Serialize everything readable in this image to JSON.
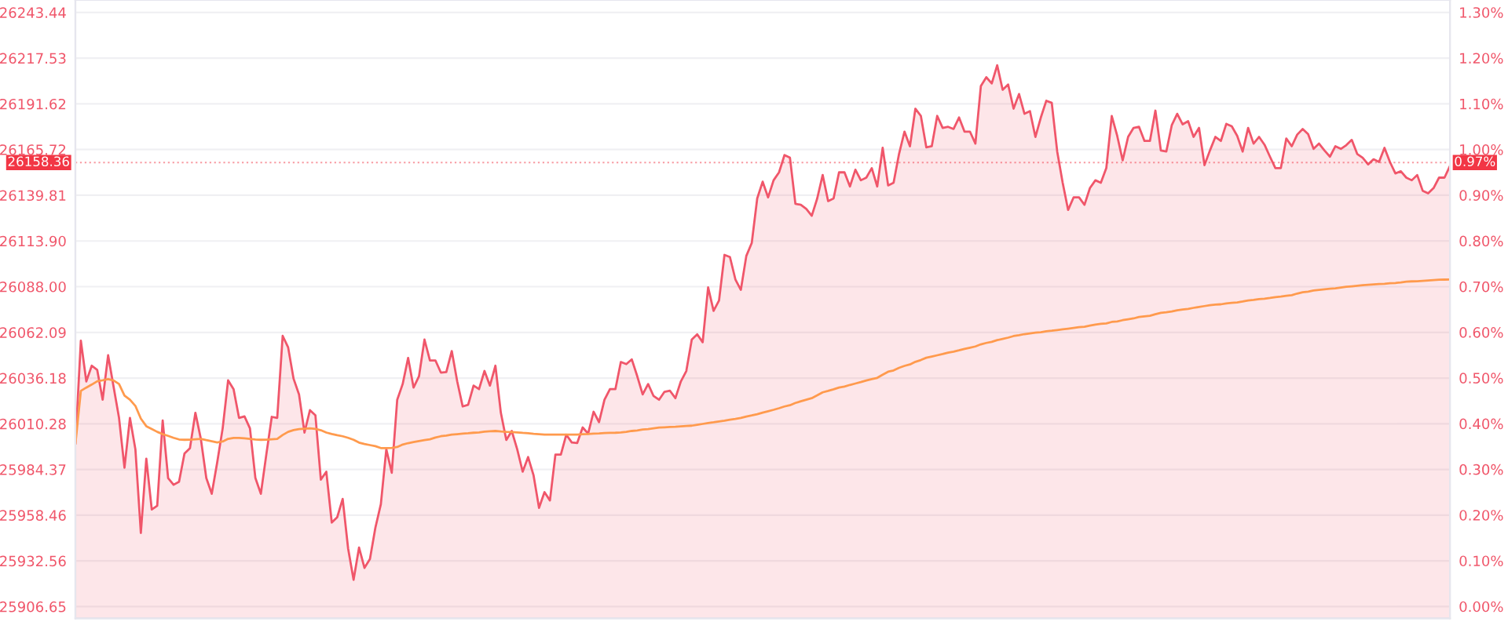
{
  "chart_data": {
    "type": "area",
    "categories": [
      null,
      null,
      null,
      null,
      null,
      null,
      null,
      null,
      null,
      null,
      null,
      null,
      null,
      null,
      null,
      null,
      null,
      null,
      null,
      null,
      null,
      null,
      null,
      null,
      null,
      null,
      null,
      null,
      null,
      null,
      null,
      null,
      null,
      null,
      null,
      null,
      null,
      null,
      null,
      null,
      null,
      null,
      null,
      null,
      null,
      null,
      null,
      null,
      null,
      null,
      null,
      null,
      null,
      null,
      null,
      null,
      null,
      null,
      null,
      null,
      null,
      null,
      null,
      null,
      null,
      null,
      null,
      null,
      null,
      null,
      null,
      null,
      null,
      null,
      null,
      null,
      null,
      null,
      null,
      null,
      null,
      null,
      null,
      null,
      null,
      null,
      null,
      null,
      null,
      null,
      null,
      null,
      null,
      null,
      null,
      null,
      null,
      null,
      null,
      null,
      null,
      null,
      null,
      null,
      null,
      null,
      null,
      null,
      null,
      null,
      null,
      null,
      null,
      null,
      null,
      null,
      null,
      null,
      null,
      null,
      null,
      null,
      null,
      null,
      null,
      null,
      null,
      null,
      null,
      null,
      null,
      null,
      null,
      null,
      null,
      null,
      null,
      null,
      null,
      null,
      null,
      null,
      null,
      null,
      null,
      null,
      null,
      null,
      null,
      null,
      null,
      null,
      null,
      null,
      null,
      null,
      null,
      null,
      null,
      null,
      null,
      null,
      null,
      null,
      null,
      null,
      null,
      null,
      null,
      null,
      null,
      null,
      null,
      null,
      null,
      null,
      null,
      null,
      null,
      null,
      null,
      null,
      null,
      null,
      null,
      null,
      null,
      null,
      null,
      null,
      null,
      null,
      null,
      null,
      null,
      null,
      null,
      null,
      null,
      null,
      null,
      null,
      null,
      null,
      null,
      null,
      null,
      null,
      null,
      null,
      null,
      null,
      null,
      null,
      null,
      null,
      null,
      null,
      null,
      null,
      null,
      null,
      null,
      null,
      null,
      null,
      null,
      null,
      null,
      null,
      null,
      null,
      null,
      null,
      null,
      null,
      null,
      null,
      null,
      null,
      null,
      null,
      null,
      null,
      null,
      null,
      null,
      null,
      null,
      null,
      null,
      null,
      null
    ],
    "ylim": [
      25900,
      26250.5
    ],
    "yticks": [
      {
        "value": 25906.65,
        "label": "25906.65"
      },
      {
        "value": 25932.56,
        "label": "25932.56"
      },
      {
        "value": 25958.46,
        "label": "25958.46"
      },
      {
        "value": 25984.37,
        "label": "25984.37"
      },
      {
        "value": 26010.28,
        "label": "26010.28"
      },
      {
        "value": 26036.18,
        "label": "26036.18"
      },
      {
        "value": 26062.09,
        "label": "26062.09"
      },
      {
        "value": 26088.0,
        "label": "26088.00"
      },
      {
        "value": 26113.9,
        "label": "26113.90"
      },
      {
        "value": 26139.81,
        "label": "26139.81"
      },
      {
        "value": 26165.72,
        "label": "26165.72"
      },
      {
        "value": 26191.62,
        "label": "26191.62"
      },
      {
        "value": 26217.53,
        "label": "26217.53"
      },
      {
        "value": 26243.44,
        "label": "26243.44"
      }
    ],
    "y2lim": [
      -0.026,
      1.327
    ],
    "y2ticks": [
      {
        "value": 0,
        "label": "0.00%"
      },
      {
        "value": 0.1,
        "label": "0.10%"
      },
      {
        "value": 0.2,
        "label": "0.20%"
      },
      {
        "value": 0.3,
        "label": "0.30%"
      },
      {
        "value": 0.4,
        "label": "0.40%"
      },
      {
        "value": 0.5,
        "label": "0.50%"
      },
      {
        "value": 0.6,
        "label": "0.60%"
      },
      {
        "value": 0.7,
        "label": "0.70%"
      },
      {
        "value": 0.8,
        "label": "0.80%"
      },
      {
        "value": 0.9,
        "label": "0.90%"
      },
      {
        "value": 1.0,
        "label": "1.00%"
      },
      {
        "value": 1.1,
        "label": "1.10%"
      },
      {
        "value": 1.2,
        "label": "1.20%"
      },
      {
        "value": 1.3,
        "label": "1.30%"
      }
    ],
    "grid": "y",
    "ref_lines": [
      {
        "axis": "y",
        "value": 26158.36,
        "label": "26158.36",
        "color": "#f23645",
        "line_style": "dotted"
      }
    ],
    "annotations": [
      {
        "text": "0.97%",
        "y": 26158.36
      }
    ],
    "series": [
      {
        "color": "#f0566a",
        "values": [
          25998.8,
          26057.4,
          26034.3,
          26043.2,
          26040.8,
          26023.9,
          26049.1,
          26031.3,
          26013.6,
          25985.4,
          26013.6,
          25995.8,
          25948.4,
          25990.5,
          25961.7,
          25963.8,
          26012.1,
          25979.5,
          25975.7,
          25977.4,
          25993.4,
          25996.4,
          26016.5,
          26001.7,
          25979.5,
          25970.6,
          25988.4,
          26007.7,
          26034.9,
          26029.9,
          26013.6,
          26014.5,
          26007.7,
          25979.5,
          25970.6,
          25992.8,
          26014.2,
          26013.6,
          26060.1,
          26053.6,
          26035.8,
          26026.9,
          26005.3,
          26018.0,
          26015.1,
          25978.6,
          25983.1,
          25954.3,
          25957.3,
          25967.7,
          25939.5,
          25921.8,
          25940.1,
          25928.6,
          25933.6,
          25951.4,
          25964.7,
          25995.8,
          25982.5,
          26023.9,
          26032.8,
          26047.6,
          26030.8,
          26037.3,
          26058.0,
          26046.2,
          26046.2,
          26039.3,
          26039.6,
          26051.5,
          26034.3,
          26020.1,
          26021.0,
          26031.9,
          26029.9,
          26040.2,
          26031.9,
          26043.2,
          26016.5,
          26001.1,
          26006.2,
          25995.8,
          25983.1,
          25991.4,
          25981.0,
          25962.6,
          25971.5,
          25966.8,
          25992.8,
          25992.8,
          26004.1,
          25999.7,
          25999.4,
          26008.2,
          26004.7,
          26017.1,
          26011.2,
          26023.9,
          26029.9,
          26029.9,
          26045.3,
          26044.1,
          26046.8,
          26037.3,
          26026.9,
          26032.8,
          26026.0,
          26023.9,
          26028.4,
          26029.0,
          26024.8,
          26034.3,
          26040.2,
          26058.0,
          26061.0,
          26056.5,
          26087.6,
          26074.3,
          26080.2,
          26106.0,
          26104.8,
          26092.1,
          26086.2,
          26105.4,
          26112.8,
          26138.0,
          26147.5,
          26138.6,
          26148.3,
          26152.8,
          26162.6,
          26161.1,
          26135.0,
          26134.4,
          26132.1,
          26128.2,
          26138.0,
          26151.3,
          26136.5,
          26138.0,
          26152.8,
          26152.8,
          26144.8,
          26154.3,
          26148.3,
          26149.8,
          26155.2,
          26144.8,
          26166.7,
          26145.4,
          26146.9,
          26163.2,
          26175.9,
          26167.6,
          26188.9,
          26184.8,
          26167.0,
          26167.6,
          26184.8,
          26178.0,
          26178.6,
          26177.4,
          26183.9,
          26175.9,
          26175.9,
          26169.1,
          26201.7,
          26206.7,
          26203.2,
          26213.5,
          26199.6,
          26202.6,
          26188.9,
          26197.2,
          26186.0,
          26187.5,
          26172.9,
          26183.9,
          26193.4,
          26192.2,
          26164.6,
          26146.9,
          26131.5,
          26138.6,
          26138.6,
          26134.4,
          26143.9,
          26148.3,
          26146.9,
          26155.2,
          26184.8,
          26173.5,
          26159.6,
          26172.9,
          26178.0,
          26178.6,
          26170.6,
          26170.6,
          26187.8,
          26165.2,
          26164.6,
          26179.5,
          26186.0,
          26180.0,
          26181.8,
          26172.9,
          26178.0,
          26156.9,
          26165.2,
          26172.9,
          26170.6,
          26180.3,
          26178.9,
          26173.5,
          26164.6,
          26178.0,
          26169.1,
          26172.9,
          26168.5,
          26161.7,
          26155.2,
          26155.2,
          26172.0,
          26167.6,
          26174.2,
          26177.4,
          26174.5,
          26166.1,
          26169.1,
          26165.2,
          26161.7,
          26167.6,
          26166.1,
          26168.2,
          26171.2,
          26163.2,
          26161.1,
          26157.3,
          26160.2,
          26158.7,
          26166.7,
          26158.7,
          26152.2,
          26153.4,
          26149.8,
          26148.3,
          26151.3,
          26142.4,
          26140.9,
          26143.9,
          26149.8,
          26149.8,
          26156.4
        ]
      },
      {
        "type": "line",
        "color": "#ff9a4d",
        "values": [
          25998.8,
          26028.9,
          26030.8,
          26032.5,
          26034.4,
          26034.9,
          26035.6,
          26034.8,
          26032.8,
          26026.3,
          26023.9,
          26020.4,
          26013.2,
          26008.9,
          26007.3,
          26005.7,
          26004.4,
          26003.4,
          26002.3,
          26001.4,
          26001.2,
          26001.3,
          26001.5,
          26001.7,
          26001.0,
          26000.4,
          25999.7,
          26000.2,
          26001.7,
          26002.3,
          26002.3,
          26002.0,
          26001.7,
          26001.4,
          26001.2,
          26001.3,
          26001.5,
          26001.7,
          26003.9,
          26005.7,
          26006.7,
          26007.3,
          26007.5,
          26007.7,
          26007.4,
          26006.6,
          26005.3,
          26004.5,
          26003.8,
          26003.2,
          26002.3,
          26001.2,
          25999.6,
          25998.8,
          25998.2,
          25997.6,
          25996.5,
          25996.5,
          25996.6,
          25997.1,
          25998.5,
          25999.3,
          25999.9,
          26000.5,
          26001.0,
          26001.5,
          26002.5,
          26003.2,
          26003.6,
          26004.1,
          26004.4,
          26004.7,
          26004.9,
          26005.2,
          26005.4,
          26005.8,
          26006.0,
          26006.2,
          26005.9,
          26005.7,
          26005.6,
          26005.4,
          26005.1,
          26004.9,
          26004.6,
          26004.4,
          26004.1,
          26004.1,
          26004.1,
          26004.1,
          26004.1,
          26004.1,
          26004.1,
          26004.4,
          26004.5,
          26004.7,
          26004.8,
          26005.0,
          26005.1,
          26005.2,
          26005.4,
          26005.7,
          26006.2,
          26006.5,
          26007.0,
          26007.3,
          26007.7,
          26008.1,
          26008.3,
          26008.5,
          26008.6,
          26008.8,
          26009.0,
          26009.2,
          26009.7,
          26010.2,
          26010.7,
          26011.1,
          26011.6,
          26012.0,
          26012.6,
          26013.0,
          26013.6,
          26014.4,
          26015.0,
          26015.7,
          26016.6,
          26017.4,
          26018.2,
          26019.1,
          26020.1,
          26020.8,
          26022.1,
          26023.0,
          26023.9,
          26024.8,
          26026.4,
          26028.1,
          26028.9,
          26029.8,
          26030.8,
          26031.4,
          26032.3,
          26033.1,
          26033.9,
          26034.8,
          26035.6,
          26036.3,
          26038.1,
          26039.8,
          26040.5,
          26042.0,
          26043.1,
          26043.9,
          26045.4,
          26046.4,
          26047.7,
          26048.4,
          26049.1,
          26049.8,
          26050.6,
          26051.2,
          26051.9,
          26052.7,
          26053.4,
          26054.1,
          26055.3,
          26056.1,
          26056.7,
          26057.7,
          26058.4,
          26059.1,
          26060.0,
          26060.5,
          26061.1,
          26061.5,
          26061.9,
          26062.2,
          26062.7,
          26063.0,
          26063.4,
          26063.8,
          26064.2,
          26064.6,
          26065.0,
          26065.3,
          26065.9,
          26066.5,
          26066.9,
          26067.2,
          26068.0,
          26068.3,
          26069.0,
          26069.5,
          26070.0,
          26070.8,
          26071.2,
          26071.5,
          26072.4,
          26073.2,
          26073.5,
          26073.9,
          26074.6,
          26075.0,
          26075.4,
          26076.0,
          26076.5,
          26077.0,
          26077.5,
          26077.8,
          26078.0,
          26078.5,
          26078.8,
          26079.1,
          26079.6,
          26080.2,
          26080.5,
          26080.9,
          26081.2,
          26081.6,
          26082.1,
          26082.4,
          26082.8,
          26083.2,
          26084.1,
          26084.8,
          26085.2,
          26085.8,
          26086.2,
          26086.5,
          26086.8,
          26087.1,
          26087.5,
          26087.9,
          26088.2,
          26088.5,
          26088.8,
          26089.1,
          26089.3,
          26089.5,
          26089.6,
          26089.9,
          26090.1,
          26090.4,
          26090.8,
          26091.0,
          26091.1,
          26091.3,
          26091.5,
          26091.7,
          26091.9,
          26092.0,
          26092.1
        ]
      }
    ]
  }
}
